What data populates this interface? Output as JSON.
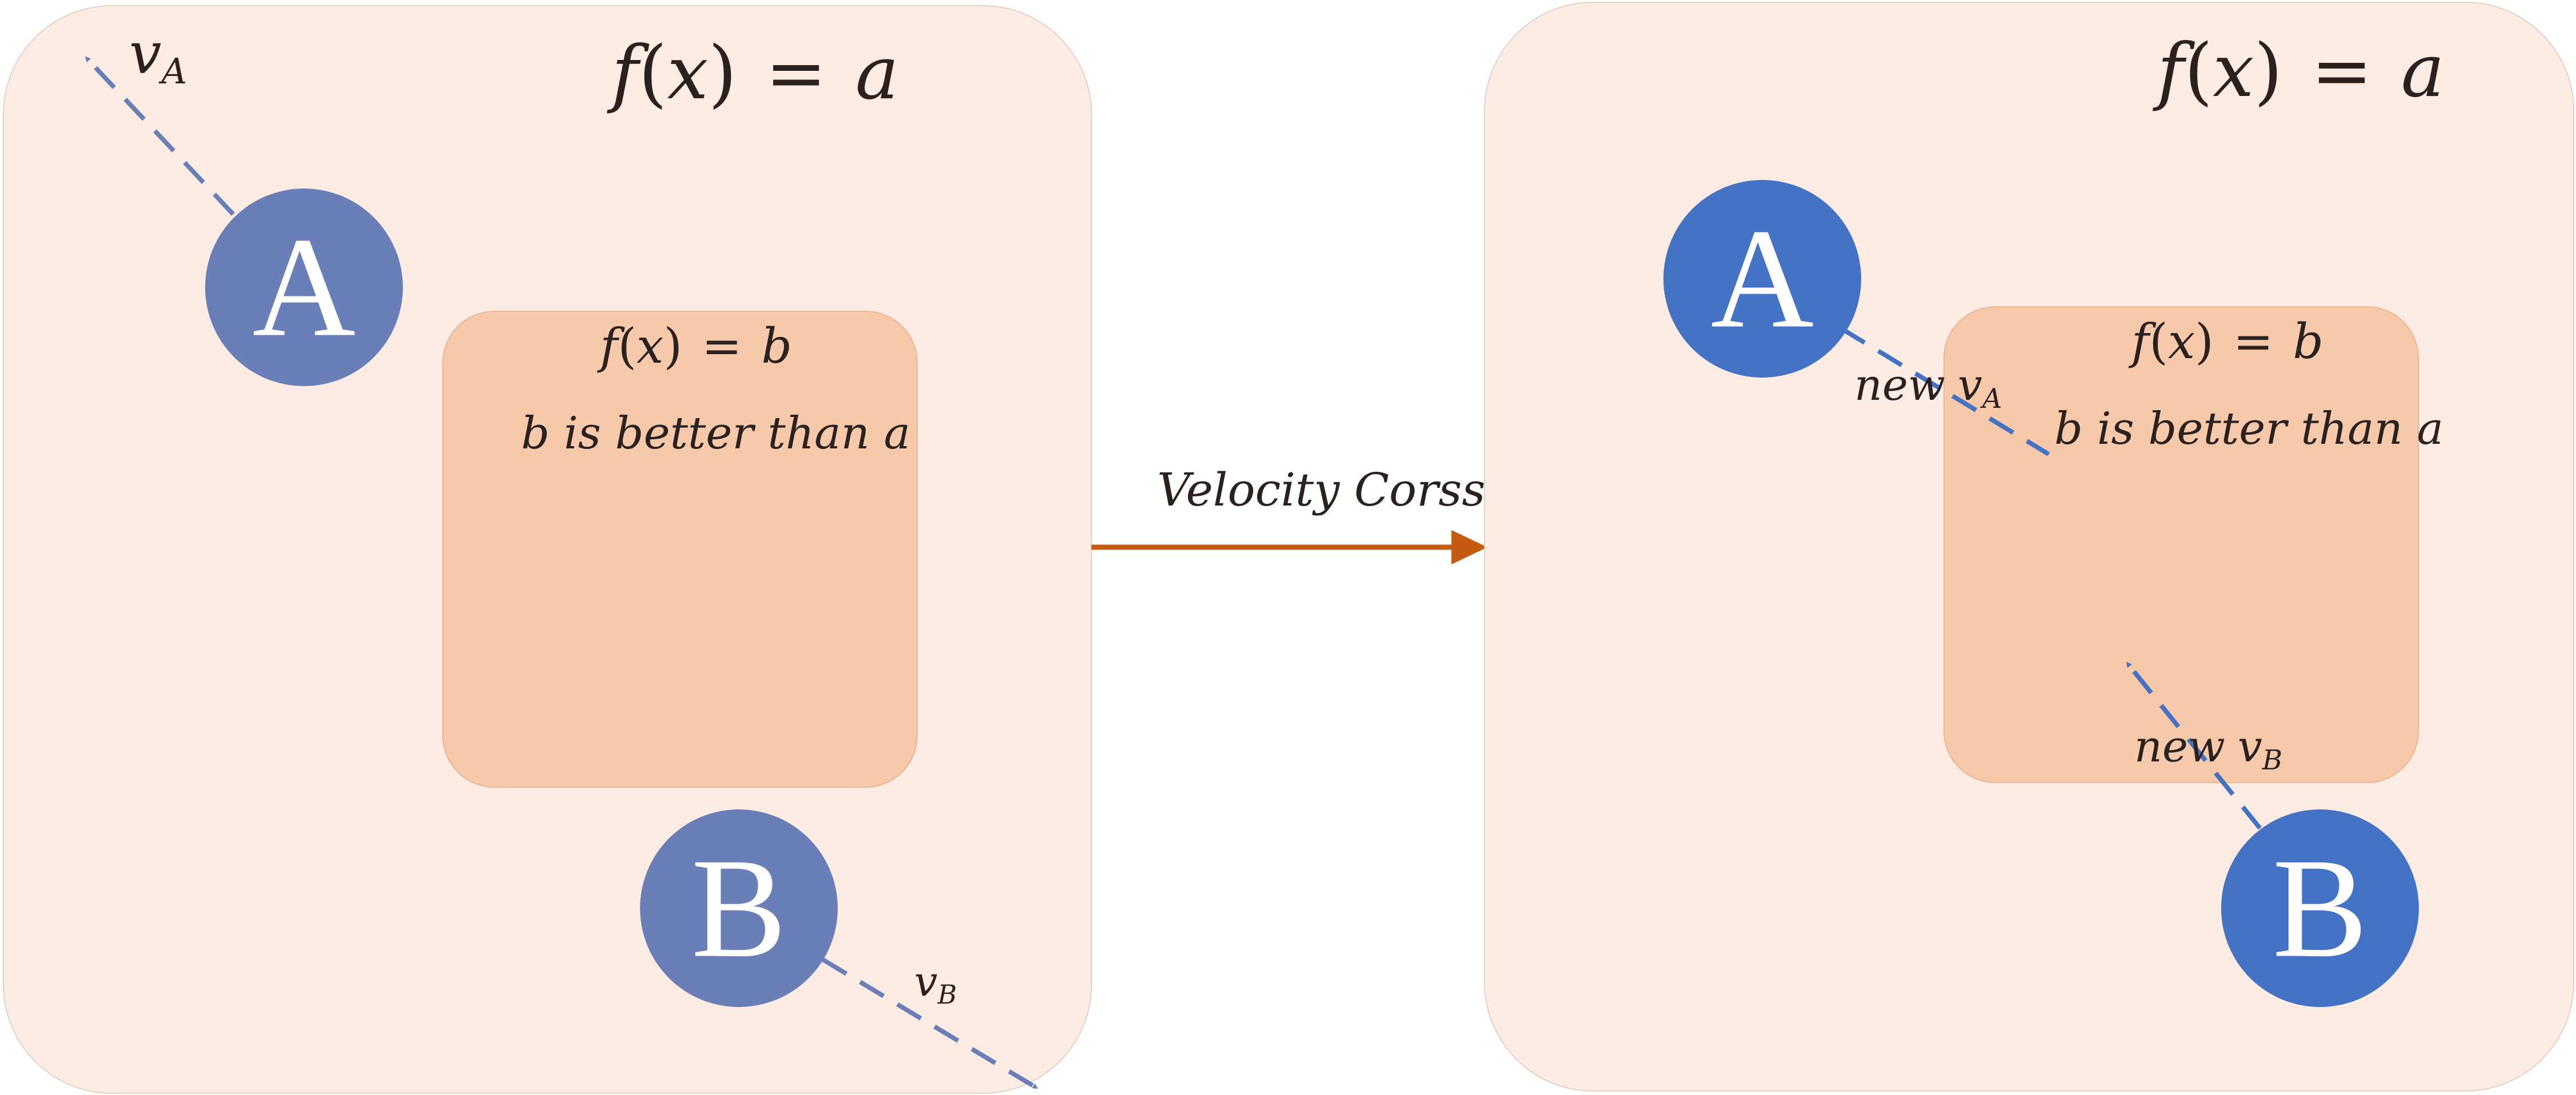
{
  "left_panel": {
    "outer_label": {
      "fn": "f",
      "arg": "x",
      "eq": "=",
      "val": "a"
    },
    "inner_label": {
      "fn": "f",
      "arg": "x",
      "eq": "=",
      "val": "b"
    },
    "inner_note": "b is better than a",
    "node_a": {
      "label": "A",
      "velocity_base": "v",
      "velocity_sub": "A"
    },
    "node_b": {
      "label": "B",
      "velocity_base": "v",
      "velocity_sub": "B"
    }
  },
  "transition": {
    "label": "Velocity Corss"
  },
  "right_panel": {
    "outer_label": {
      "fn": "f",
      "arg": "x",
      "eq": "=",
      "val": "a"
    },
    "inner_label": {
      "fn": "f",
      "arg": "x",
      "eq": "=",
      "val": "b"
    },
    "inner_note": "b is better than a",
    "node_a": {
      "label": "A",
      "velocity_prefix": "new",
      "velocity_base": "v",
      "velocity_sub": "A"
    },
    "node_b": {
      "label": "B",
      "velocity_prefix": "new",
      "velocity_base": "v",
      "velocity_sub": "B"
    }
  },
  "colors": {
    "outer_region": "#fcece3",
    "inner_region": "#f5c9aa",
    "left_nodes": "#6a7fb8",
    "right_nodes": "#4472c4",
    "transition_arrow": "#c55a11",
    "text": "#2b2220"
  }
}
